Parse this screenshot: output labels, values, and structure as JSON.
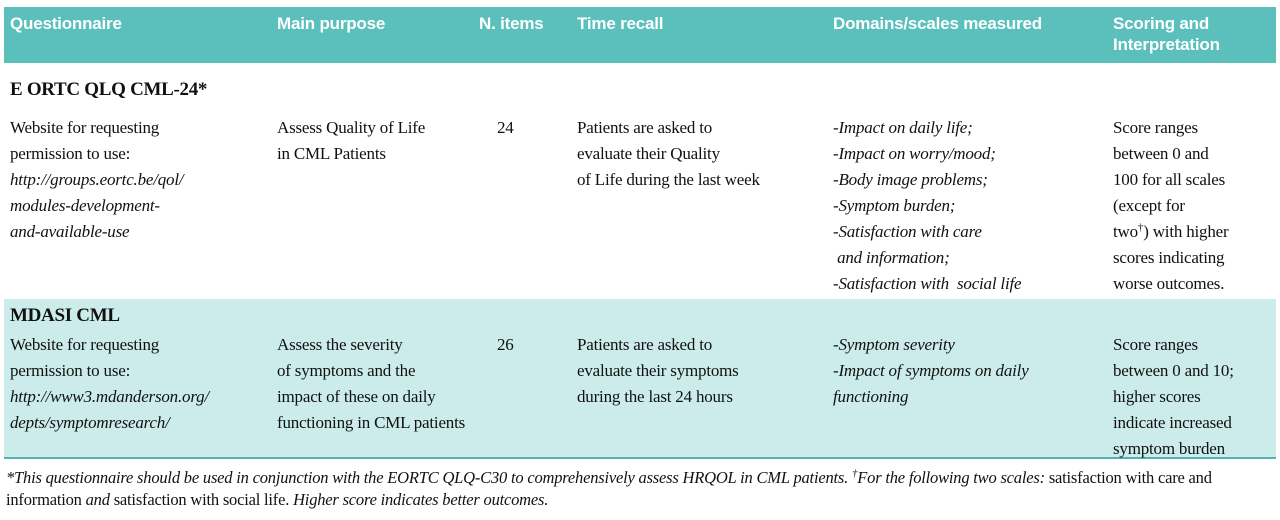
{
  "colors": {
    "header_teal": "#5bc0bc",
    "row_teal": "#cbecea",
    "border_teal": "#4fb5b2"
  },
  "table": {
    "header": {
      "columns": [
        "Questionnaire",
        "Main purpose",
        "N. items",
        "Time recall",
        "Domains/scales measured",
        "Scoring and Interpretation"
      ]
    },
    "rows": [
      {
        "name": "E ORTC QLQ CML-24*",
        "website_label": "Website for requesting\npermission to use:",
        "website_url": "http://groups.eortc.be/qol/\nmodules-development-\nand-available-use",
        "purpose": "Assess Quality of Life\nin CML Patients",
        "n_items": "24",
        "time_recall": "Patients are asked to\nevaluate their Quality\nof Life during the last week",
        "domains": "-Impact on daily life;\n-Impact on worry/mood;\n-Body image problems;\n-Symptom burden;\n-Satisfaction with care\n and information;\n-Satisfaction with  social life",
        "scoring_pre": "Score ranges\nbetween 0 and\n100 for all scales\n(except for\ntwo",
        "scoring_sup": "†",
        "scoring_post": ") with higher\nscores indicating\nworse outcomes."
      },
      {
        "name": "MDASI CML",
        "website_label": "Website for requesting\npermission to use:",
        "website_url": "http://www3.mdanderson.org/\ndepts/symptomresearch/",
        "purpose": "Assess the severity\nof symptoms and the\nimpact of these on daily\nfunctioning in CML patients",
        "n_items": "26",
        "time_recall": "Patients are asked to\nevaluate their symptoms\nduring the last 24 hours",
        "domains": "-Symptom severity\n-Impact of symptoms on daily\nfunctioning",
        "scoring_pre": "Score ranges\nbetween 0 and 10;\nhigher scores\nindicate increased\nsymptom burden",
        "scoring_sup": "",
        "scoring_post": ""
      }
    ]
  },
  "footnote": {
    "segments": [
      {
        "text": "*This questionnaire should be used in conjunction with the EORTC QLQ-C30 to comprehensively assess HRQOL in CML patients. "
      },
      {
        "text": "†"
      },
      {
        "text": "For the following two scales: "
      },
      {
        "text": "satisfaction with care and information "
      },
      {
        "text": "and "
      },
      {
        "text": "satisfaction with social life. "
      },
      {
        "text": "Higher score indicates better outcomes."
      }
    ]
  }
}
